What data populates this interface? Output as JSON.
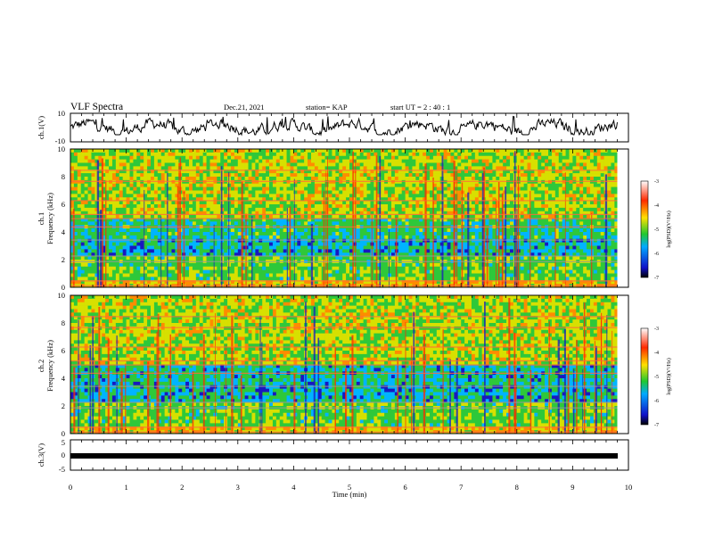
{
  "header": {
    "title": "VLF Spectra",
    "date": "Dec.21, 2021",
    "station": "station= KAP",
    "start": "start  UT  =   2  : 40 : 1"
  },
  "chart_data": [
    {
      "type": "line",
      "panel": "waveform-ch1",
      "ylabel": "ch.1(V)",
      "ylim": [
        -10,
        10
      ],
      "y_ticks": [
        "10",
        "-10"
      ],
      "xlim": [
        0,
        10
      ],
      "x_end_data": 9.8,
      "approx_mean": 0,
      "approx_range": [
        -5,
        8
      ]
    },
    {
      "type": "heatmap",
      "panel": "spectrogram-ch1",
      "ylabel": "Frequency (kHz)",
      "channel_label": "ch.1",
      "y_ticks": [
        "0",
        "2",
        "4",
        "6",
        "8",
        "10"
      ],
      "ylim": [
        0,
        10
      ],
      "xlim": [
        0,
        10
      ],
      "colorbar": {
        "label": "log(PSD)(V²/Hz)",
        "ticks": [
          "-3",
          "-4",
          "-5",
          "-6",
          "-7"
        ],
        "range": [
          -7,
          -3
        ],
        "colors": [
          "#000000",
          "#1010c8",
          "#00aaff",
          "#20c830",
          "#ffe000",
          "#ff2a00",
          "#ffffff"
        ]
      }
    },
    {
      "type": "heatmap",
      "panel": "spectrogram-ch2",
      "ylabel": "Frequency (kHz)",
      "channel_label": "ch.2",
      "y_ticks": [
        "0",
        "2",
        "4",
        "6",
        "8",
        "10"
      ],
      "ylim": [
        0,
        10
      ],
      "xlim": [
        0,
        10
      ],
      "colorbar": {
        "label": "log(PSD)(V²/Hz)",
        "ticks": [
          "-3",
          "-4",
          "-5",
          "-6",
          "-7"
        ],
        "range": [
          -7,
          -3
        ]
      }
    },
    {
      "type": "line",
      "panel": "waveform-ch3",
      "ylabel": "ch.3(V)",
      "ylim": [
        -5,
        5
      ],
      "y_ticks": [
        "5",
        "0",
        "-5"
      ],
      "xlim": [
        0,
        10
      ],
      "approx_level": -1,
      "approx_band": [
        -1.5,
        -0.5
      ]
    }
  ],
  "xaxis": {
    "label": "Time (min)",
    "ticks": [
      "0",
      "1",
      "2",
      "3",
      "4",
      "5",
      "6",
      "7",
      "8",
      "9",
      "10"
    ]
  }
}
